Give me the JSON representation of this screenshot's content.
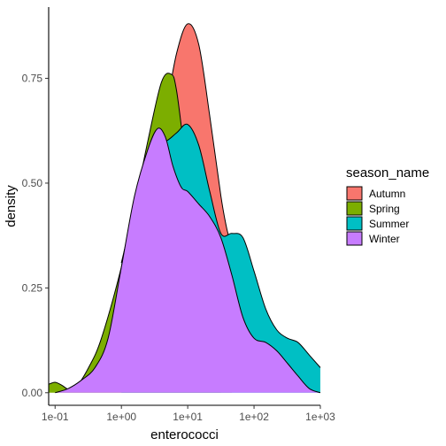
{
  "chart_data": {
    "type": "area",
    "subtype": "density",
    "xscale": "log10",
    "xlabel": "enterococci",
    "ylabel": "density",
    "xlim": [
      0.08,
      1000
    ],
    "ylim": [
      -0.03,
      0.92
    ],
    "x_ticks": [
      {
        "value": 0.1,
        "label": "1e-01"
      },
      {
        "value": 1,
        "label": "1e+00"
      },
      {
        "value": 10,
        "label": "1e+01"
      },
      {
        "value": 100,
        "label": "1e+02"
      },
      {
        "value": 1000,
        "label": "1e+03"
      }
    ],
    "y_ticks": [
      {
        "value": 0.0,
        "label": "0.00"
      },
      {
        "value": 0.25,
        "label": "0.25"
      },
      {
        "value": 0.5,
        "label": "0.50"
      },
      {
        "value": 0.75,
        "label": "0.75"
      }
    ],
    "grid": false,
    "legend": {
      "title": "season_name",
      "position": "right"
    },
    "series": [
      {
        "name": "Autumn",
        "color": "#F8766D",
        "x": [
          1.0,
          1.5,
          2.2,
          3.2,
          4.6,
          6.8,
          10,
          14.7,
          21.5,
          31.6,
          39,
          46.4
        ],
        "values": [
          0.31,
          0.41,
          0.5,
          0.58,
          0.67,
          0.81,
          0.88,
          0.83,
          0.66,
          0.47,
          0.39,
          0.35
        ]
      },
      {
        "name": "Spring",
        "color": "#7CAE00",
        "x": [
          0.08,
          0.1,
          0.126,
          0.158,
          0.2,
          0.32,
          0.5,
          1.0,
          1.6,
          2.5,
          4.0,
          5.6,
          6.8,
          10,
          14.7,
          21.5,
          31.6
        ],
        "values": [
          0.02,
          0.025,
          0.018,
          0.008,
          0.01,
          0.06,
          0.13,
          0.3,
          0.45,
          0.6,
          0.74,
          0.76,
          0.72,
          0.53,
          0.47,
          0.43,
          0.38
        ]
      },
      {
        "name": "Summer",
        "color": "#00BFC4",
        "x": [
          1.0,
          1.5,
          2.2,
          3.2,
          4.6,
          6.8,
          10,
          14.7,
          21.5,
          31.6,
          46.4,
          68,
          100,
          150,
          220,
          320,
          460,
          680,
          1000
        ],
        "values": [
          0.31,
          0.43,
          0.55,
          0.61,
          0.6,
          0.62,
          0.64,
          0.59,
          0.48,
          0.38,
          0.38,
          0.37,
          0.29,
          0.2,
          0.15,
          0.13,
          0.12,
          0.09,
          0.06
        ]
      },
      {
        "name": "Winter",
        "color": "#C77CFF",
        "x": [
          0.1,
          0.158,
          0.25,
          0.4,
          0.63,
          1.0,
          1.58,
          2.5,
          3.5,
          4.6,
          6.0,
          8.0,
          10,
          14.7,
          21.5,
          31.6,
          46.4,
          68,
          100,
          150,
          220,
          320,
          460,
          680,
          1000
        ],
        "values": [
          0.0,
          0.01,
          0.03,
          0.06,
          0.13,
          0.3,
          0.47,
          0.58,
          0.63,
          0.61,
          0.54,
          0.49,
          0.48,
          0.45,
          0.42,
          0.37,
          0.28,
          0.18,
          0.13,
          0.12,
          0.1,
          0.07,
          0.04,
          0.01,
          0.0
        ]
      }
    ]
  }
}
